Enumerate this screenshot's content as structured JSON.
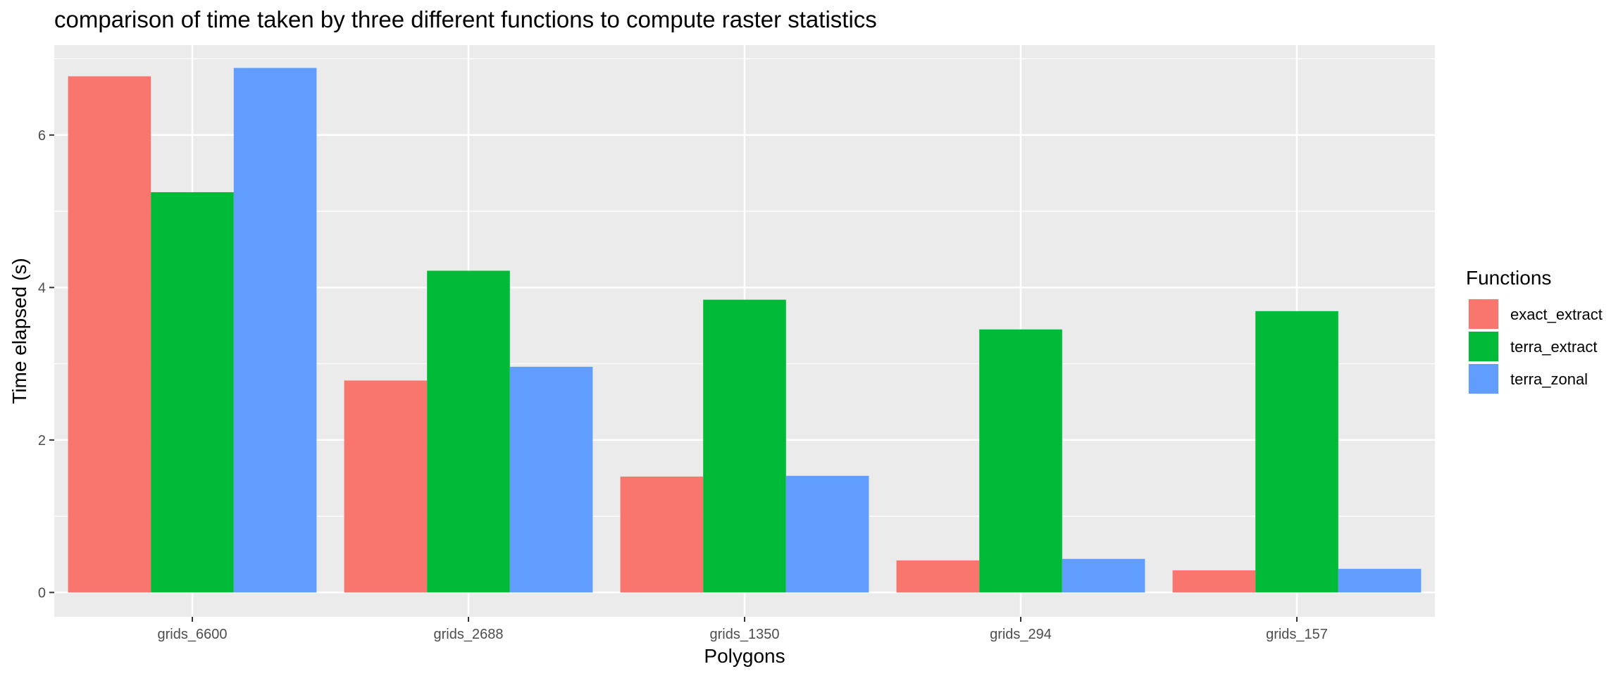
{
  "chart_data": {
    "type": "bar",
    "title": "comparison of time taken by three different functions to compute raster statistics",
    "xlabel": "Polygons",
    "ylabel": "Time elapsed (s)",
    "categories": [
      "grids_6600",
      "grids_2688",
      "grids_1350",
      "grids_294",
      "grids_157"
    ],
    "series": [
      {
        "name": "exact_extract",
        "color": "#F8766D",
        "values": [
          6.77,
          2.78,
          1.52,
          0.42,
          0.29
        ]
      },
      {
        "name": "terra_extract",
        "color": "#00BA38",
        "values": [
          5.25,
          4.22,
          3.84,
          3.45,
          3.69
        ]
      },
      {
        "name": "terra_zonal",
        "color": "#619CFF",
        "values": [
          6.88,
          2.96,
          1.53,
          0.44,
          0.31
        ]
      }
    ],
    "ylim": [
      -0.32,
      7.18
    ],
    "yticks": [
      0,
      2,
      4,
      6
    ],
    "ytick_labels": [
      "0",
      "2",
      "4",
      "6"
    ],
    "legend": {
      "title": "Functions",
      "position": "right"
    },
    "grid": true,
    "panel_background": "#EBEBEB",
    "grid_color": "#FFFFFF"
  }
}
